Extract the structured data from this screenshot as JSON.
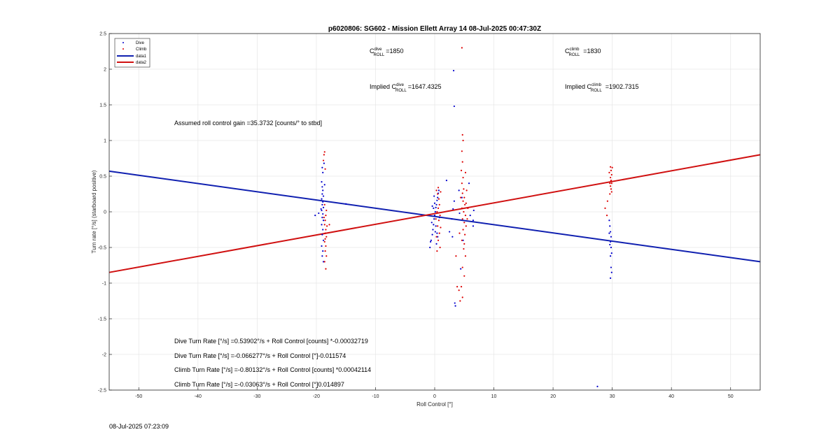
{
  "footer": {
    "timestamp": "08-Jul-2025 07:23:09"
  },
  "colors": {
    "dive": "#0000cc",
    "climb": "#dd0000",
    "dive_line": "#1020b0",
    "climb_line": "#d01010",
    "grid": "#e6e6e6",
    "axis": "#262626"
  },
  "chart_data": {
    "type": "scatter",
    "title": "p6020806: SG602 - Mission Ellett Array 14 08-Jul-2025 00:47:30Z",
    "xlabel": "Roll Control [°]",
    "ylabel": "Turn rate [°/s] (starboard positive)",
    "xlim": [
      -55,
      55
    ],
    "ylim": [
      -2.5,
      2.5
    ],
    "xticks": [
      -50,
      -40,
      -30,
      -20,
      -10,
      0,
      10,
      20,
      30,
      40,
      50
    ],
    "yticks": [
      -2.5,
      -2,
      -1.5,
      -1,
      -0.5,
      0,
      0.5,
      1,
      1.5,
      2,
      2.5
    ],
    "grid": true,
    "legend": {
      "location": "top-left",
      "entries": [
        "Dive",
        "Climb",
        "data1",
        "data2"
      ]
    },
    "annotations": {
      "c_dive_label": "C",
      "c_dive_sup": "dive",
      "c_dive_sub": "ROLL",
      "c_dive_val": "=1850",
      "c_climb_label": "C",
      "c_climb_sup": "climb",
      "c_climb_sub": "ROLL",
      "c_climb_val": "=1830",
      "impl_dive_prefix": "Implied C",
      "impl_dive_sup": "dive",
      "impl_dive_sub": "ROLL",
      "impl_dive_val": "=1647.4325",
      "impl_climb_prefix": "Implied C",
      "impl_climb_sup": "climb",
      "impl_climb_sub": "ROLL",
      "impl_climb_val": "=1902.7315",
      "gain": "Assumed roll control gain =35.3732 [counts/° to stbd]",
      "eq1": "Dive Turn Rate [°/s] =0.53902°/s + Roll Control [counts] *-0.00032719",
      "eq2": "Dive Turn Rate [°/s] =-0.066277°/s + Roll Control [°]-0.011574",
      "eq3": "Climb Turn Rate [°/s] =-0.80132°/s + Roll Control [counts] *0.00042114",
      "eq4": "Climb Turn Rate [°/s] =-0.03063°/s + Roll Control [°]0.014897"
    },
    "lines": [
      {
        "name": "data1",
        "x": [
          -55,
          55
        ],
        "y": [
          0.57,
          -0.7
        ]
      },
      {
        "name": "data2",
        "x": [
          -55,
          55
        ],
        "y": [
          -0.85,
          0.8
        ]
      }
    ],
    "series": [
      {
        "name": "Dive",
        "points": [
          [
            -20.2,
            -0.05
          ],
          [
            -19.6,
            -0.02
          ],
          [
            -19.1,
            0.42
          ],
          [
            -19.0,
            0.35
          ],
          [
            -18.9,
            0.3
          ],
          [
            -19.0,
            0.25
          ],
          [
            -18.8,
            0.22
          ],
          [
            -19.1,
            0.18
          ],
          [
            -18.9,
            0.14
          ],
          [
            -19.0,
            0.1
          ],
          [
            -18.8,
            0.06
          ],
          [
            -19.1,
            0.02
          ],
          [
            -18.9,
            -0.03
          ],
          [
            -19.0,
            -0.08
          ],
          [
            -18.8,
            -0.12
          ],
          [
            -19.1,
            -0.18
          ],
          [
            -18.9,
            -0.25
          ],
          [
            -19.0,
            -0.32
          ],
          [
            -18.8,
            -0.4
          ],
          [
            -19.1,
            -0.48
          ],
          [
            -18.9,
            -0.55
          ],
          [
            -19.0,
            -0.62
          ],
          [
            -18.8,
            -0.7
          ],
          [
            -18.9,
            0.55
          ],
          [
            -19.0,
            0.62
          ],
          [
            -18.7,
            0.68
          ],
          [
            -15.0,
            0.11
          ],
          [
            -18.6,
            0.38
          ],
          [
            -19.2,
            0.04
          ],
          [
            -0.8,
            -0.5
          ],
          [
            -0.6,
            -0.4
          ],
          [
            -0.4,
            -0.32
          ],
          [
            -0.3,
            -0.25
          ],
          [
            -0.2,
            -0.18
          ],
          [
            -0.1,
            -0.1
          ],
          [
            0.0,
            -0.05
          ],
          [
            0.1,
            0.0
          ],
          [
            0.2,
            0.06
          ],
          [
            0.3,
            0.1
          ],
          [
            0.4,
            0.16
          ],
          [
            0.5,
            0.2
          ],
          [
            0.6,
            0.26
          ],
          [
            0.7,
            0.3
          ],
          [
            -0.5,
            -0.15
          ],
          [
            -0.2,
            0.05
          ],
          [
            0.2,
            -0.2
          ],
          [
            0.4,
            -0.3
          ],
          [
            0.0,
            0.12
          ],
          [
            -0.7,
            -0.42
          ],
          [
            0.8,
            -0.08
          ],
          [
            0.5,
            -0.35
          ],
          [
            -0.1,
            0.22
          ],
          [
            0.3,
            -0.45
          ],
          [
            -0.4,
            0.08
          ],
          [
            0.1,
            -0.28
          ],
          [
            3.2,
            1.98
          ],
          [
            3.3,
            1.48
          ],
          [
            3.4,
            -1.28
          ],
          [
            3.5,
            -1.32
          ],
          [
            3.0,
            -0.35
          ],
          [
            2.5,
            -0.28
          ],
          [
            3.1,
            0.04
          ],
          [
            2.9,
            -0.1
          ],
          [
            3.3,
            0.15
          ],
          [
            4.2,
            -0.02
          ],
          [
            4.1,
            0.3
          ],
          [
            2.0,
            0.44
          ],
          [
            4.4,
            -0.8
          ],
          [
            6.5,
            -0.2
          ],
          [
            6.6,
            0.02
          ],
          [
            6.5,
            -0.12
          ],
          [
            5.8,
            0.4
          ],
          [
            6.0,
            -0.05
          ],
          [
            4.6,
            0.2
          ],
          [
            4.8,
            -0.4
          ],
          [
            29.5,
            -0.12
          ],
          [
            29.6,
            -0.2
          ],
          [
            29.7,
            -0.28
          ],
          [
            29.8,
            -0.35
          ],
          [
            29.7,
            -0.42
          ],
          [
            29.8,
            -0.5
          ],
          [
            29.9,
            -0.58
          ],
          [
            29.7,
            -0.62
          ],
          [
            29.8,
            -0.78
          ],
          [
            29.9,
            -0.85
          ],
          [
            29.7,
            -0.93
          ],
          [
            29.5,
            -0.3
          ],
          [
            29.6,
            -0.46
          ],
          [
            27.5,
            -2.45
          ]
        ]
      },
      {
        "name": "Climb",
        "points": [
          [
            -18.6,
            0.84
          ],
          [
            -18.7,
            0.8
          ],
          [
            -18.8,
            0.72
          ],
          [
            -18.5,
            0.6
          ],
          [
            -18.6,
            0.1
          ],
          [
            -18.4,
            -0.05
          ],
          [
            -18.5,
            -0.12
          ],
          [
            -18.6,
            -0.18
          ],
          [
            -18.4,
            -0.25
          ],
          [
            -18.5,
            -0.3
          ],
          [
            -18.3,
            -0.35
          ],
          [
            -18.6,
            -0.42
          ],
          [
            -18.4,
            -0.48
          ],
          [
            -18.5,
            -0.55
          ],
          [
            -18.3,
            -0.62
          ],
          [
            -18.6,
            -0.7
          ],
          [
            -18.4,
            -0.8
          ],
          [
            -18.2,
            -0.2
          ],
          [
            -18.7,
            -0.08
          ],
          [
            -18.3,
            0.02
          ],
          [
            -17.8,
            -0.18
          ],
          [
            -18.5,
            -0.38
          ],
          [
            0.3,
            0.3
          ],
          [
            0.5,
            0.25
          ],
          [
            0.7,
            0.18
          ],
          [
            0.8,
            0.1
          ],
          [
            0.6,
            0.05
          ],
          [
            0.4,
            0.0
          ],
          [
            0.9,
            -0.05
          ],
          [
            0.7,
            -0.12
          ],
          [
            0.5,
            -0.2
          ],
          [
            0.8,
            -0.3
          ],
          [
            0.6,
            -0.4
          ],
          [
            0.9,
            -0.5
          ],
          [
            0.4,
            -0.55
          ],
          [
            1.0,
            0.28
          ],
          [
            1.0,
            -0.22
          ],
          [
            0.3,
            -0.35
          ],
          [
            0.6,
            0.34
          ],
          [
            0.2,
            -0.1
          ],
          [
            4.6,
            2.3
          ],
          [
            4.7,
            1.08
          ],
          [
            4.8,
            1.0
          ],
          [
            4.6,
            0.85
          ],
          [
            4.7,
            0.7
          ],
          [
            4.5,
            0.58
          ],
          [
            4.8,
            0.48
          ],
          [
            4.6,
            0.4
          ],
          [
            4.9,
            0.32
          ],
          [
            4.7,
            0.26
          ],
          [
            5.0,
            0.2
          ],
          [
            4.8,
            0.15
          ],
          [
            5.1,
            0.1
          ],
          [
            4.6,
            0.05
          ],
          [
            4.9,
            0.0
          ],
          [
            5.2,
            -0.05
          ],
          [
            4.7,
            -0.1
          ],
          [
            5.0,
            -0.15
          ],
          [
            5.3,
            -0.2
          ],
          [
            4.8,
            -0.25
          ],
          [
            5.1,
            -0.32
          ],
          [
            4.6,
            -0.4
          ],
          [
            4.9,
            -0.52
          ],
          [
            5.2,
            -0.62
          ],
          [
            4.7,
            -0.78
          ],
          [
            5.0,
            -0.9
          ],
          [
            4.5,
            -1.05
          ],
          [
            4.7,
            -1.2
          ],
          [
            4.3,
            -1.25
          ],
          [
            3.8,
            -1.05
          ],
          [
            4.1,
            -1.1
          ],
          [
            3.6,
            -0.62
          ],
          [
            5.4,
            0.3
          ],
          [
            5.5,
            -0.1
          ],
          [
            5.3,
            0.12
          ],
          [
            4.4,
            0.2
          ],
          [
            4.2,
            -0.3
          ],
          [
            5.6,
            0.05
          ],
          [
            5.2,
            0.55
          ],
          [
            5.0,
            -0.45
          ],
          [
            29.7,
            0.63
          ],
          [
            29.8,
            0.58
          ],
          [
            29.9,
            0.52
          ],
          [
            29.7,
            0.48
          ],
          [
            29.8,
            0.44
          ],
          [
            29.9,
            0.4
          ],
          [
            29.7,
            0.36
          ],
          [
            29.8,
            0.32
          ],
          [
            29.9,
            0.28
          ],
          [
            29.6,
            0.25
          ],
          [
            29.2,
            0.15
          ],
          [
            28.8,
            0.05
          ],
          [
            29.1,
            -0.05
          ],
          [
            29.5,
            0.55
          ],
          [
            29.6,
            0.4
          ],
          [
            30.0,
            0.62
          ]
        ]
      }
    ]
  }
}
